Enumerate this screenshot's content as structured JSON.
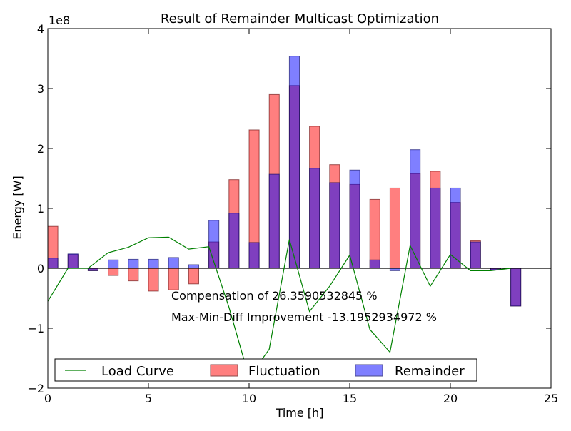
{
  "chart_data": {
    "type": "bar",
    "title": "Result of Remainder Multicast Optimization",
    "xlabel": "Time [h]",
    "ylabel": "Energy [W]",
    "y_scale_label": "1e8",
    "xlim": [
      0,
      25
    ],
    "ylim": [
      -2,
      4
    ],
    "x_ticks": [
      0,
      5,
      10,
      15,
      20,
      25
    ],
    "y_ticks": [
      -2,
      -1,
      0,
      1,
      2,
      3,
      4
    ],
    "x_tick_labels": [
      "0",
      "5",
      "10",
      "15",
      "20",
      "25"
    ],
    "y_tick_labels": [
      "−2",
      "−1",
      "0",
      "1",
      "2",
      "3",
      "4"
    ],
    "grid": false,
    "legend_position": "lower-center",
    "x": [
      0,
      1,
      2,
      3,
      4,
      5,
      6,
      7,
      8,
      9,
      10,
      11,
      12,
      13,
      14,
      15,
      16,
      17,
      18,
      19,
      20,
      21,
      22,
      23
    ],
    "series": [
      {
        "name": "Load Curve",
        "kind": "line",
        "color": "#008000",
        "values": [
          -0.55,
          0.0,
          0.0,
          0.26,
          0.35,
          0.51,
          0.52,
          0.32,
          0.36,
          -0.65,
          -1.82,
          -1.35,
          0.48,
          -0.72,
          -0.3,
          0.22,
          -1.02,
          -1.4,
          0.38,
          -0.3,
          0.23,
          -0.04,
          -0.04,
          0.0
        ]
      },
      {
        "name": "Fluctuation",
        "kind": "bar",
        "color": "#ff7f7f",
        "values": [
          0.7,
          0.23,
          -0.04,
          -0.12,
          -0.21,
          -0.38,
          -0.36,
          -0.26,
          0.44,
          1.48,
          2.31,
          2.9,
          3.05,
          2.37,
          1.73,
          1.4,
          1.15,
          1.34,
          1.58,
          1.62,
          1.1,
          0.46,
          -0.02,
          -0.63
        ]
      },
      {
        "name": "Remainder",
        "kind": "bar",
        "color": "#7f7fff",
        "values": [
          0.17,
          0.24,
          -0.04,
          0.14,
          0.15,
          0.15,
          0.18,
          0.06,
          0.8,
          0.92,
          0.43,
          1.57,
          3.54,
          1.67,
          1.43,
          1.64,
          0.14,
          -0.04,
          1.98,
          1.34,
          1.34,
          0.44,
          -0.03,
          -0.63
        ]
      }
    ],
    "annotations": [
      "Compensation of 26.3590532845 %",
      "Max-Min-Diff Improvement -13.1952934972 %"
    ]
  }
}
